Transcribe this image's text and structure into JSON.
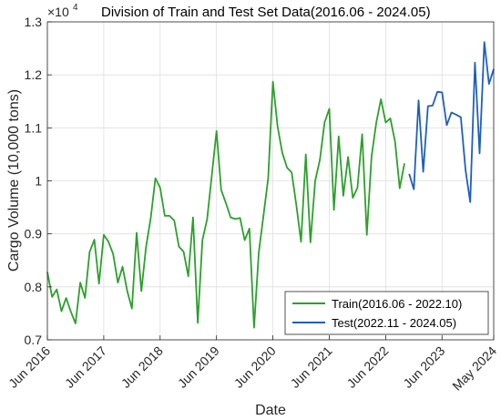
{
  "chart_data": {
    "type": "line",
    "title": "Division of Train and Test Set Data(2016.06 - 2024.05)",
    "exponent_label": "×10",
    "exponent_power": "4",
    "xlabel": "Date",
    "ylabel": "Cargo Volume (10,000 tons)",
    "ylim": [
      0.7,
      1.3
    ],
    "yticks": [
      0.7,
      0.8,
      0.9,
      1.0,
      1.1,
      1.2,
      1.3
    ],
    "ytick_labels": [
      "0.7",
      "0.8",
      "0.9",
      "1",
      "1.1",
      "1.2",
      "1.3"
    ],
    "xlim": [
      "2016-06",
      "2024-05"
    ],
    "xticks": [
      "2016-06",
      "2017-06",
      "2018-06",
      "2019-06",
      "2020-06",
      "2021-06",
      "2022-06",
      "2023-06",
      "2024-05"
    ],
    "xtick_labels": [
      "Jun 2016",
      "Jun 2017",
      "Jun 2018",
      "Jun 2019",
      "Jun 2020",
      "Jun 2021",
      "Jun 2022",
      "Jun 2023",
      "May 2024"
    ],
    "grid": true,
    "legend_position": "bottom-right",
    "series": [
      {
        "name": "Train(2016.06 - 2022.10)",
        "color": "#2ca02c",
        "x": [
          "2016-06",
          "2016-07",
          "2016-08",
          "2016-09",
          "2016-10",
          "2016-11",
          "2016-12",
          "2017-01",
          "2017-02",
          "2017-03",
          "2017-04",
          "2017-05",
          "2017-06",
          "2017-07",
          "2017-08",
          "2017-09",
          "2017-10",
          "2017-11",
          "2017-12",
          "2018-01",
          "2018-02",
          "2018-03",
          "2018-04",
          "2018-05",
          "2018-06",
          "2018-07",
          "2018-08",
          "2018-09",
          "2018-10",
          "2018-11",
          "2018-12",
          "2019-01",
          "2019-02",
          "2019-03",
          "2019-04",
          "2019-05",
          "2019-06",
          "2019-07",
          "2019-08",
          "2019-09",
          "2019-10",
          "2019-11",
          "2019-12",
          "2020-01",
          "2020-02",
          "2020-03",
          "2020-04",
          "2020-05",
          "2020-06",
          "2020-07",
          "2020-08",
          "2020-09",
          "2020-10",
          "2020-11",
          "2020-12",
          "2021-01",
          "2021-02",
          "2021-03",
          "2021-04",
          "2021-05",
          "2021-06",
          "2021-07",
          "2021-08",
          "2021-09",
          "2021-10",
          "2021-11",
          "2021-12",
          "2022-01",
          "2022-02",
          "2022-03",
          "2022-04",
          "2022-05",
          "2022-06",
          "2022-07",
          "2022-08",
          "2022-09",
          "2022-10"
        ],
        "values": [
          0.828,
          0.781,
          0.795,
          0.754,
          0.779,
          0.753,
          0.731,
          0.808,
          0.779,
          0.866,
          0.889,
          0.806,
          0.898,
          0.885,
          0.862,
          0.808,
          0.838,
          0.792,
          0.759,
          0.902,
          0.792,
          0.875,
          0.93,
          1.005,
          0.987,
          0.934,
          0.934,
          0.925,
          0.876,
          0.866,
          0.82,
          0.931,
          0.732,
          0.888,
          0.928,
          1.01,
          1.094,
          0.983,
          0.958,
          0.931,
          0.928,
          0.93,
          0.888,
          0.91,
          0.723,
          0.865,
          0.935,
          1.005,
          1.187,
          1.103,
          1.053,
          1.025,
          1.016,
          0.953,
          0.885,
          1.05,
          0.884,
          1.0,
          1.04,
          1.11,
          1.136,
          0.945,
          1.084,
          0.972,
          1.045,
          0.968,
          0.987,
          1.088,
          0.898,
          1.046,
          1.11,
          1.154,
          1.11,
          1.118,
          1.074,
          0.986,
          1.033
        ]
      },
      {
        "name": "Test(2022.11 - 2024.05)",
        "color": "#1f5fbf",
        "x": [
          "2022-11",
          "2022-12",
          "2023-01",
          "2023-02",
          "2023-03",
          "2023-04",
          "2023-05",
          "2023-06",
          "2023-07",
          "2023-08",
          "2023-09",
          "2023-10",
          "2023-11",
          "2023-12",
          "2024-01",
          "2024-02",
          "2024-03",
          "2024-04",
          "2024-05"
        ],
        "values": [
          1.013,
          0.984,
          1.152,
          1.017,
          1.141,
          1.142,
          1.168,
          1.167,
          1.105,
          1.129,
          1.125,
          1.12,
          1.02,
          0.96,
          1.223,
          1.052,
          1.262,
          1.183,
          1.211
        ]
      }
    ]
  }
}
